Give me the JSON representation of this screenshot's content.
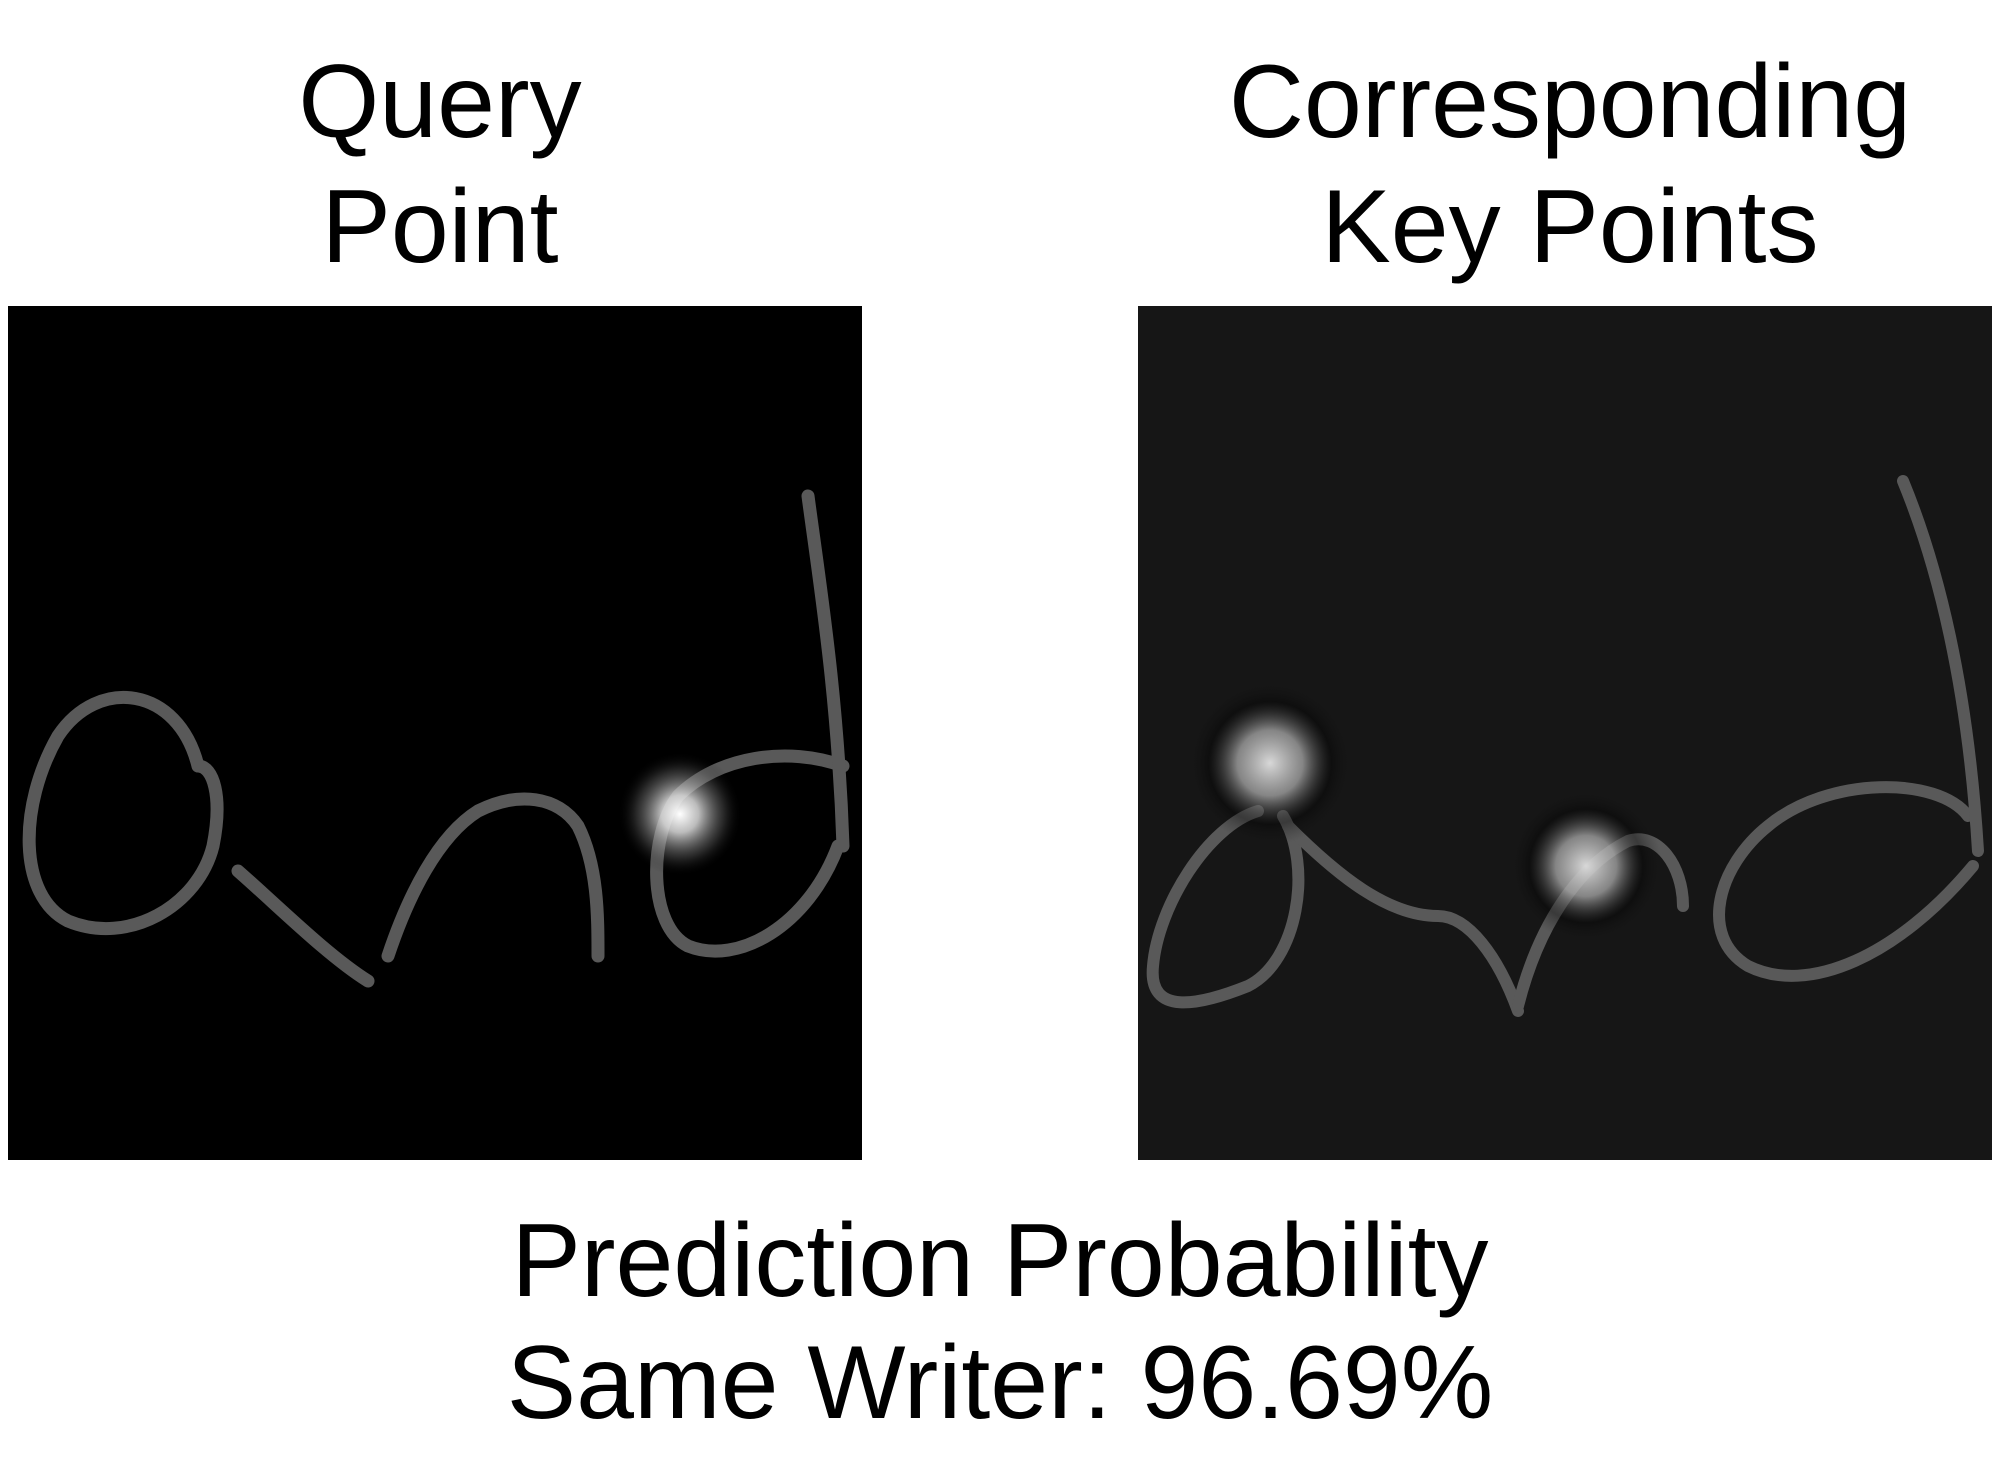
{
  "query_heading": {
    "line1": "Query",
    "line2": "Point"
  },
  "key_heading": {
    "line1": "Corresponding",
    "line2": "Key Points"
  },
  "result_caption": {
    "line1": "Prediction Probability",
    "line2": "Same Writer: 96.69%"
  },
  "colors": {
    "query_background": "#000000",
    "key_background": "#161616",
    "ink_stroke": "#595959",
    "highlight": "#ffffff"
  }
}
